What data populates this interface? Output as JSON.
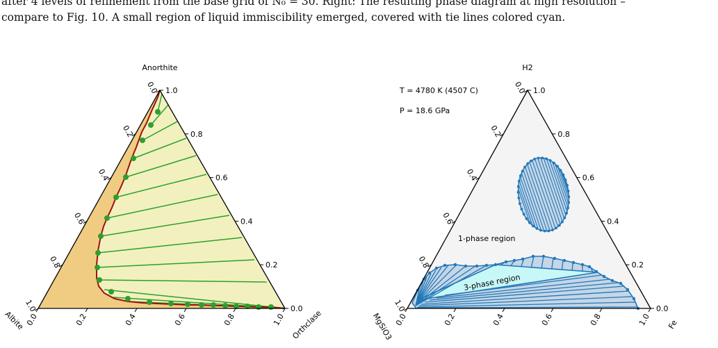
{
  "caption": {
    "line1": "after 4 levels of refinement from the base grid of N₀ = 30. Right: The resulting phase diagram at high resolution –",
    "line2": "compare to Fig. 10. A small region of liquid immiscibility emerged, covered with tie lines colored cyan."
  },
  "left_diagram": {
    "top_label": "Anorthite",
    "left_label": "Albite",
    "right_label": "Orthclase",
    "left_ticks": [
      "0.0",
      "0.2",
      "0.4",
      "0.6",
      "0.8",
      "1.0"
    ],
    "right_ticks": [
      "1.0",
      "0.8",
      "0.6",
      "0.4",
      "0.2",
      "0.0"
    ],
    "bottom_ticks": [
      "0.0",
      "0.2",
      "0.4",
      "0.6",
      "0.8",
      "1.0"
    ],
    "colors": {
      "solid_region": "#f0cc82",
      "liquid_region": "#f2f0bf",
      "boundary": "#a01010",
      "tie_lines": "#2ca02c"
    }
  },
  "right_diagram": {
    "top_label": "H2",
    "left_label": "MgSiO3",
    "right_label": "Fe",
    "temperature": "T = 4780 K (4507 C)",
    "pressure": "P = 18.6 GPa",
    "one_phase_label": "1-phase region",
    "three_phase_label": "3-phase region",
    "left_ticks": [
      "0.0",
      "0.2",
      "0.4",
      "0.6",
      "0.8",
      "1.0"
    ],
    "right_ticks": [
      "1.0",
      "0.8",
      "0.6",
      "0.4",
      "0.2",
      "0.0"
    ],
    "bottom_ticks": [
      "0.0",
      "0.2",
      "0.4",
      "0.6",
      "0.8",
      "1.0"
    ],
    "colors": {
      "background": "#f4f4f4",
      "two_phase": "#c5d6e6",
      "three_phase": "#c8f7f7",
      "tie_lines": "#2277b8"
    }
  }
}
